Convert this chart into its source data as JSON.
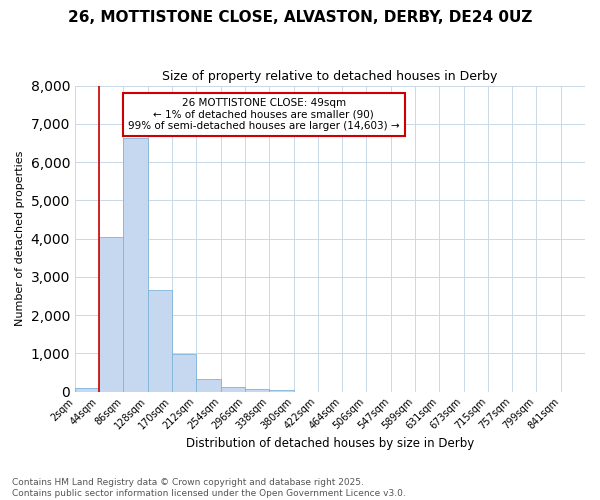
{
  "title1": "26, MOTTISTONE CLOSE, ALVASTON, DERBY, DE24 0UZ",
  "title2": "Size of property relative to detached houses in Derby",
  "xlabel": "Distribution of detached houses by size in Derby",
  "ylabel": "Number of detached properties",
  "footnote1": "Contains HM Land Registry data © Crown copyright and database right 2025.",
  "footnote2": "Contains public sector information licensed under the Open Government Licence v3.0.",
  "bar_labels": [
    "2sqm",
    "44sqm",
    "86sqm",
    "128sqm",
    "170sqm",
    "212sqm",
    "254sqm",
    "296sqm",
    "338sqm",
    "380sqm",
    "422sqm",
    "464sqm",
    "506sqm",
    "547sqm",
    "589sqm",
    "631sqm",
    "673sqm",
    "715sqm",
    "757sqm",
    "799sqm",
    "841sqm"
  ],
  "bar_values": [
    90,
    4050,
    6620,
    2650,
    980,
    330,
    120,
    80,
    50,
    0,
    0,
    0,
    0,
    0,
    0,
    0,
    0,
    0,
    0,
    0,
    0
  ],
  "bar_color": "#c5d8f0",
  "bar_edge_color": "#7fb3d9",
  "background_color": "#ffffff",
  "grid_color": "#c8d8e8",
  "property_line_color": "#cc0000",
  "annotation_text": "26 MOTTISTONE CLOSE: 49sqm\n← 1% of detached houses are smaller (90)\n99% of semi-detached houses are larger (14,603) →",
  "annotation_box_color": "#cc0000",
  "ylim": [
    0,
    8000
  ],
  "yticks": [
    0,
    1000,
    2000,
    3000,
    4000,
    5000,
    6000,
    7000,
    8000
  ],
  "title1_fontsize": 11,
  "title2_fontsize": 9,
  "footnote_color": "#555555",
  "footnote_fontsize": 6.5
}
